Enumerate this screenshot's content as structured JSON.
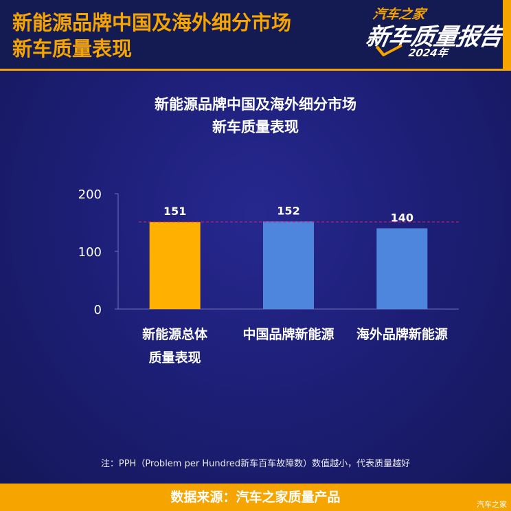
{
  "header": {
    "title_line1": "新能源品牌中国及海外细分市场",
    "title_line2": "新车质量表现",
    "logo_brand": "汽车之家",
    "logo_report": "新车质量报告",
    "logo_year": "2024年"
  },
  "chart_title_line1": "新能源品牌中国及海外细分市场",
  "chart_title_line2": "新车质量表现",
  "chart_data": {
    "type": "bar",
    "categories": [
      "新能源总体质量表现",
      "中国品牌新能源",
      "海外品牌新能源"
    ],
    "category_lines": [
      [
        "新能源总体",
        "质量表现"
      ],
      [
        "中国品牌新能源"
      ],
      [
        "海外品牌新能源"
      ]
    ],
    "values": [
      151,
      152,
      140
    ],
    "data_labels": [
      "151",
      "152",
      "140"
    ],
    "bar_colors": [
      "#ffb000",
      "#4e86dd",
      "#4e86dd"
    ],
    "ylim": [
      0,
      200
    ],
    "yticks": [
      0,
      100,
      200
    ],
    "ytick_labels": [
      "0",
      "100",
      "200"
    ],
    "reference_line": 151,
    "reference_line_color": "#e0245e",
    "grid": false,
    "title": "新能源品牌中国及海外细分市场 新车质量表现"
  },
  "note": "注：PPH（Problem per Hundred新车百车故障数）数值越小，代表质量越好",
  "footer": {
    "source": "数据来源：汽车之家质量产品",
    "watermark": "汽车之家"
  },
  "colors": {
    "background": "#171a5e",
    "accent": "#f5a400",
    "text": "#ffffff"
  }
}
